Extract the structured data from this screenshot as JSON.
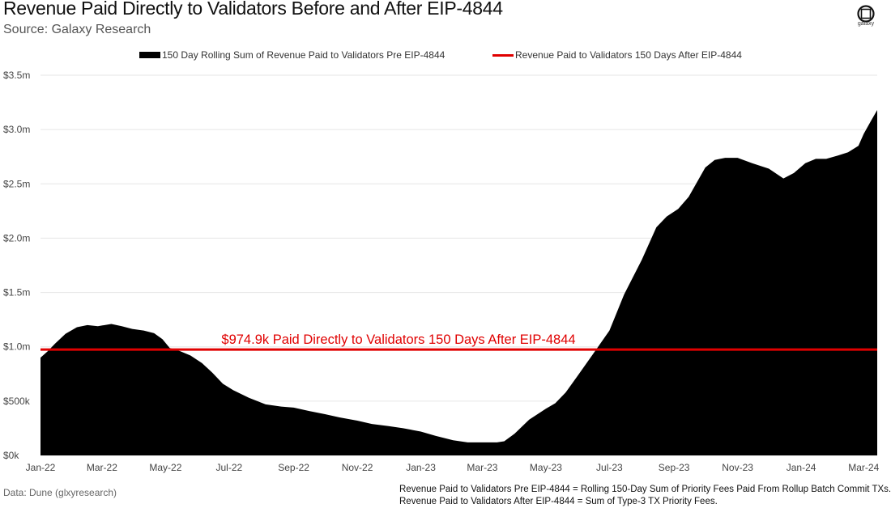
{
  "header": {
    "title": "Revenue Paid Directly to Validators Before and After EIP-4844",
    "subtitle": "Source: Galaxy Research",
    "logo_text": "galaxy"
  },
  "legend": {
    "area_label": "150 Day Rolling Sum of Revenue Paid to Validators Pre EIP-4844",
    "line_label": "Revenue Paid to Validators 150 Days After EIP-4844"
  },
  "footer": {
    "data_source": "Data: Dune (glxyresearch)",
    "note_1": "Revenue Paid to Validators  Pre EIP-4844 = Rolling 150-Day Sum of Priority Fees Paid From Rollup Batch Commit TXs.",
    "note_2": "Revenue Paid to Validators After EIP-4844 = Sum of Type-3 TX Priority Fees."
  },
  "colors": {
    "area": "#000000",
    "reference_line": "#e00000",
    "grid": "#e6e6e6"
  },
  "chart_data": {
    "type": "area",
    "ylim": [
      0,
      3500000
    ],
    "grid": true,
    "legend_position": "top-center",
    "y_ticks": [
      {
        "value": 0,
        "label": "$0k"
      },
      {
        "value": 500000,
        "label": "$500k"
      },
      {
        "value": 1000000,
        "label": "$1.0m"
      },
      {
        "value": 1500000,
        "label": "$1.5m"
      },
      {
        "value": 2000000,
        "label": "$2.0m"
      },
      {
        "value": 2500000,
        "label": "$2.5m"
      },
      {
        "value": 3000000,
        "label": "$3.0m"
      },
      {
        "value": 3500000,
        "label": "$3.5m"
      }
    ],
    "x_ticks": [
      {
        "date": "2022-01-01",
        "label": "Jan-22"
      },
      {
        "date": "2022-03-01",
        "label": "Mar-22"
      },
      {
        "date": "2022-05-01",
        "label": "May-22"
      },
      {
        "date": "2022-07-01",
        "label": "Jul-22"
      },
      {
        "date": "2022-09-01",
        "label": "Sep-22"
      },
      {
        "date": "2022-11-01",
        "label": "Nov-22"
      },
      {
        "date": "2023-01-01",
        "label": "Jan-23"
      },
      {
        "date": "2023-03-01",
        "label": "Mar-23"
      },
      {
        "date": "2023-05-01",
        "label": "May-23"
      },
      {
        "date": "2023-07-01",
        "label": "Jul-23"
      },
      {
        "date": "2023-09-01",
        "label": "Sep-23"
      },
      {
        "date": "2023-11-01",
        "label": "Nov-23"
      },
      {
        "date": "2024-01-01",
        "label": "Jan-24"
      },
      {
        "date": "2024-03-01",
        "label": "Mar-24"
      }
    ],
    "series": [
      {
        "name": "150 Day Rolling Sum of Revenue Paid to Validators Pre EIP-4844",
        "points": [
          [
            "2022-01-01",
            900000
          ],
          [
            "2022-01-08",
            960000
          ],
          [
            "2022-01-15",
            1030000
          ],
          [
            "2022-01-25",
            1120000
          ],
          [
            "2022-02-05",
            1180000
          ],
          [
            "2022-02-15",
            1200000
          ],
          [
            "2022-02-25",
            1190000
          ],
          [
            "2022-03-10",
            1210000
          ],
          [
            "2022-03-20",
            1190000
          ],
          [
            "2022-03-30",
            1165000
          ],
          [
            "2022-04-10",
            1150000
          ],
          [
            "2022-04-20",
            1125000
          ],
          [
            "2022-04-28",
            1070000
          ],
          [
            "2022-05-05",
            990000
          ],
          [
            "2022-05-15",
            960000
          ],
          [
            "2022-05-25",
            920000
          ],
          [
            "2022-06-05",
            850000
          ],
          [
            "2022-06-15",
            760000
          ],
          [
            "2022-06-25",
            660000
          ],
          [
            "2022-07-05",
            600000
          ],
          [
            "2022-07-20",
            530000
          ],
          [
            "2022-08-05",
            470000
          ],
          [
            "2022-08-20",
            450000
          ],
          [
            "2022-09-01",
            440000
          ],
          [
            "2022-09-15",
            410000
          ],
          [
            "2022-10-01",
            380000
          ],
          [
            "2022-10-15",
            350000
          ],
          [
            "2022-11-01",
            320000
          ],
          [
            "2022-11-15",
            290000
          ],
          [
            "2022-12-01",
            270000
          ],
          [
            "2022-12-15",
            250000
          ],
          [
            "2023-01-01",
            220000
          ],
          [
            "2023-01-15",
            180000
          ],
          [
            "2023-02-01",
            140000
          ],
          [
            "2023-02-15",
            120000
          ],
          [
            "2023-03-01",
            120000
          ],
          [
            "2023-03-15",
            120000
          ],
          [
            "2023-03-22",
            130000
          ],
          [
            "2023-04-01",
            200000
          ],
          [
            "2023-04-15",
            330000
          ],
          [
            "2023-05-01",
            430000
          ],
          [
            "2023-05-10",
            480000
          ],
          [
            "2023-05-20",
            580000
          ],
          [
            "2023-06-01",
            740000
          ],
          [
            "2023-06-15",
            930000
          ],
          [
            "2023-07-01",
            1150000
          ],
          [
            "2023-07-15",
            1480000
          ],
          [
            "2023-08-01",
            1800000
          ],
          [
            "2023-08-15",
            2100000
          ],
          [
            "2023-08-25",
            2200000
          ],
          [
            "2023-09-05",
            2270000
          ],
          [
            "2023-09-15",
            2380000
          ],
          [
            "2023-10-01",
            2650000
          ],
          [
            "2023-10-10",
            2720000
          ],
          [
            "2023-10-20",
            2740000
          ],
          [
            "2023-11-01",
            2740000
          ],
          [
            "2023-11-15",
            2690000
          ],
          [
            "2023-12-01",
            2640000
          ],
          [
            "2023-12-15",
            2550000
          ],
          [
            "2023-12-25",
            2600000
          ],
          [
            "2024-01-05",
            2690000
          ],
          [
            "2024-01-15",
            2730000
          ],
          [
            "2024-01-25",
            2730000
          ],
          [
            "2024-02-05",
            2760000
          ],
          [
            "2024-02-15",
            2790000
          ],
          [
            "2024-02-25",
            2850000
          ],
          [
            "2024-03-01",
            2960000
          ],
          [
            "2024-03-08",
            3080000
          ],
          [
            "2024-03-14",
            3180000
          ]
        ]
      },
      {
        "name": "Revenue Paid to Validators 150 Days After EIP-4844",
        "value": 974900
      }
    ],
    "annotations": [
      {
        "text": "$974.9k Paid Directly to Validators 150 Days After EIP-4844"
      }
    ]
  }
}
